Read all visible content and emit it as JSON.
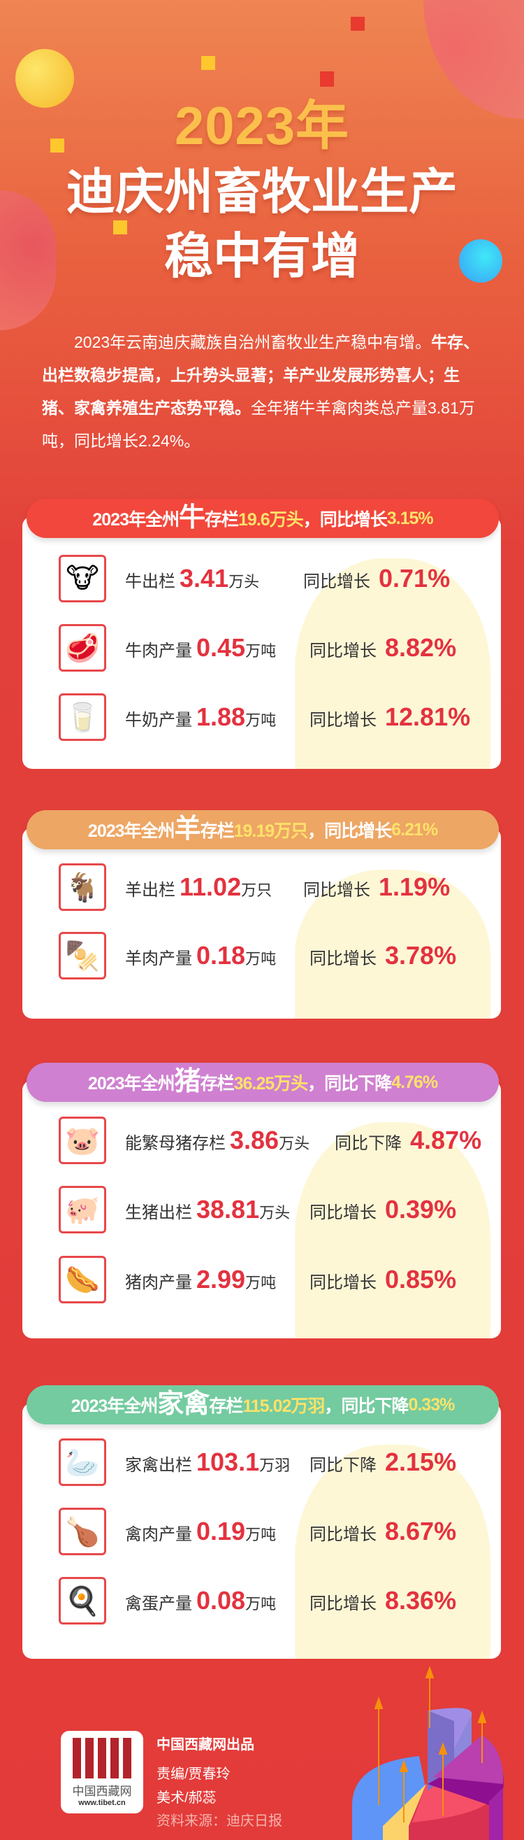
{
  "header": {
    "year_title": "2023年",
    "title_line1": "迪庆州畜牧业生产",
    "title_line2": "稳中有增"
  },
  "intro": {
    "part1": "2023年云南迪庆藏族自治州畜牧业生产稳中有增。",
    "bold": "牛存、出栏数稳步提高，上升势头显著；羊产业发展形势喜人；生猪、家禽养殖生产态势平稳。",
    "part2": "全年猪牛羊禽肉类总产量3.81万吨，同比增长2.24%。"
  },
  "colors": {
    "cattle": "#f2473c",
    "sheep": "#eda664",
    "pig": "#cf80d0",
    "poultry": "#74cba0",
    "highlight": "#fde26a",
    "value": "#e3323f"
  },
  "sections": [
    {
      "prefix": "2023年全州",
      "animal": "牛",
      "mid": "存栏",
      "stock": "19.6万头",
      "sep": "，",
      "change_label": "同比增长",
      "change": "3.15%",
      "rows": [
        {
          "icon": "cow-icon",
          "glyph": "🐮",
          "label": "牛出栏",
          "value": "3.41",
          "unit": "万头",
          "yoy_label": "同比增长",
          "yoy": "0.71%"
        },
        {
          "icon": "beef-icon",
          "glyph": "🥩",
          "label": "牛肉产量",
          "value": "0.45",
          "unit": "万吨",
          "yoy_label": "同比增长",
          "yoy": "8.82%"
        },
        {
          "icon": "milk-carton-icon",
          "glyph": "🥛",
          "label": "牛奶产量",
          "value": "1.88",
          "unit": "万吨",
          "yoy_label": "同比增长",
          "yoy": "12.81%"
        }
      ]
    },
    {
      "prefix": "2023年全州",
      "animal": "羊",
      "mid": "存栏",
      "stock": "19.19万只",
      "sep": "，",
      "change_label": "同比增长",
      "change": "6.21%",
      "rows": [
        {
          "icon": "sheep-icon",
          "glyph": "🐐",
          "label": "羊出栏",
          "value": "11.02",
          "unit": "万只",
          "yoy_label": "同比增长",
          "yoy": "1.19%"
        },
        {
          "icon": "lamb-skewer-icon",
          "glyph": "🍢",
          "label": "羊肉产量",
          "value": "0.18",
          "unit": "万吨",
          "yoy_label": "同比增长",
          "yoy": "3.78%"
        }
      ]
    },
    {
      "prefix": "2023年全州",
      "animal": "猪",
      "mid": "存栏",
      "stock": "36.25万头",
      "sep": "，",
      "change_label": "同比下降",
      "change": "4.76%",
      "rows": [
        {
          "icon": "sow-icon",
          "glyph": "🐷",
          "label": "能繁母猪存栏",
          "value": "3.86",
          "unit": "万头",
          "yoy_label": "同比下降",
          "yoy": "4.87%"
        },
        {
          "icon": "piglets-icon",
          "glyph": "🐖",
          "label": "生猪出栏",
          "value": "38.81",
          "unit": "万头",
          "yoy_label": "同比增长",
          "yoy": "0.39%"
        },
        {
          "icon": "ham-sausage-icon",
          "glyph": "🌭",
          "label": "猪肉产量",
          "value": "2.99",
          "unit": "万吨",
          "yoy_label": "同比增长",
          "yoy": "0.85%"
        }
      ]
    },
    {
      "prefix": "2023年全州",
      "animal": "家禽",
      "mid": "存栏",
      "stock": "115.02万羽",
      "sep": "，",
      "change_label": "同比下降",
      "change": "0.33%",
      "rows": [
        {
          "icon": "goose-icon",
          "glyph": "🦢",
          "label": "家禽出栏",
          "value": "103.1",
          "unit": "万羽",
          "yoy_label": "同比下降",
          "yoy": "2.15%"
        },
        {
          "icon": "roast-chicken-icon",
          "glyph": "🍗",
          "label": "禽肉产量",
          "value": "0.19",
          "unit": "万吨",
          "yoy_label": "同比增长",
          "yoy": "8.67%"
        },
        {
          "icon": "fried-egg-icon",
          "glyph": "🍳",
          "label": "禽蛋产量",
          "value": "0.08",
          "unit": "万吨",
          "yoy_label": "同比增长",
          "yoy": "8.36%"
        }
      ]
    }
  ],
  "footer": {
    "logo_text": "中国西藏网",
    "logo_url": "www.tibet.cn",
    "producer": "中国西藏网出品",
    "editor": "责编/贾春玲",
    "art": "美术/郝蕊",
    "source": "资料来源：迪庆日报"
  }
}
